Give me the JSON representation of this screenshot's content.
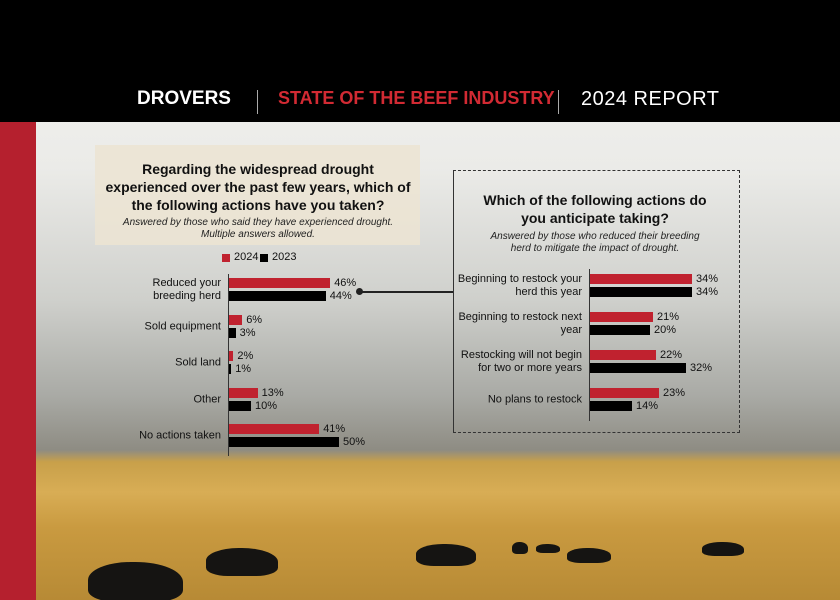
{
  "header": {
    "logo": "DROVERS",
    "title": "STATE OF THE BEEF INDUSTRY",
    "report": "2024 REPORT"
  },
  "chart_data": [
    {
      "type": "bar",
      "title": "Regarding the widespread drought experienced over the past few years, which of the following actions have you taken?",
      "subtitle": "Answered by those who said they have experienced drought. Multiple answers allowed.",
      "categories": [
        "Reduced your breeding herd",
        "Sold equipment",
        "Sold land",
        "Other",
        "No actions taken"
      ],
      "series": [
        {
          "name": "2024",
          "color": "#c0222f",
          "values": [
            46,
            6,
            2,
            13,
            41
          ],
          "value_labels": [
            "46%",
            "6%",
            "2%",
            "13%",
            "41%"
          ]
        },
        {
          "name": "2023",
          "color": "#000000",
          "values": [
            44,
            3,
            1,
            10,
            50
          ],
          "value_labels": [
            "44%",
            "3%",
            "1%",
            "10%",
            "50%"
          ]
        }
      ]
    },
    {
      "type": "bar",
      "title": "Which of the following actions do you anticipate taking?",
      "subtitle": "Answered by those who reduced their breeding herd to mitigate the impact of drought.",
      "categories": [
        "Beginning to restock your herd this year",
        "Beginning to restock next year",
        "Restocking will not begin for two or more years",
        "No plans to restock"
      ],
      "series": [
        {
          "color": "#c0222f",
          "values": [
            34,
            21,
            22,
            23
          ],
          "value_labels": [
            "34%",
            "21%",
            "22%",
            "23%"
          ]
        },
        {
          "color": "#000000",
          "values": [
            34,
            20,
            32,
            14
          ],
          "value_labels": [
            "34%",
            "20%",
            "32%",
            "14%"
          ]
        }
      ]
    }
  ]
}
